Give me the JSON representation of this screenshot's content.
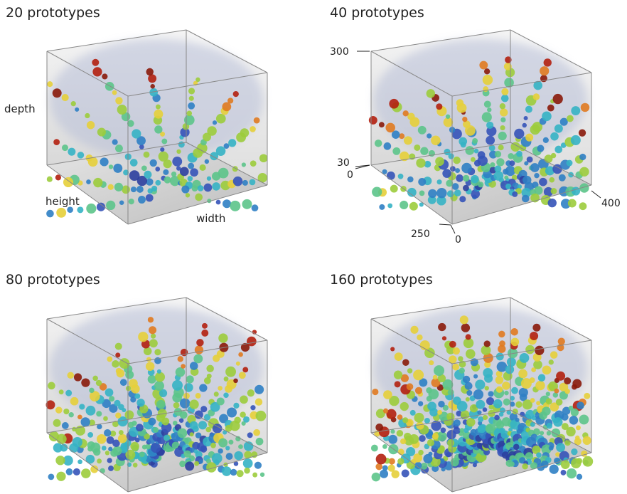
{
  "panels": [
    {
      "title": "20 prototypes",
      "axis_labels": {
        "depth": "depth",
        "height": "height",
        "width": "width"
      }
    },
    {
      "title": "40 prototypes",
      "ticks": {
        "depth_top": "300",
        "depth_bottom": "30",
        "origin": "0",
        "width_end": "400",
        "height_end": "250",
        "width_start": "0"
      }
    },
    {
      "title": "80 prototypes"
    },
    {
      "title": "160 prototypes"
    }
  ]
}
